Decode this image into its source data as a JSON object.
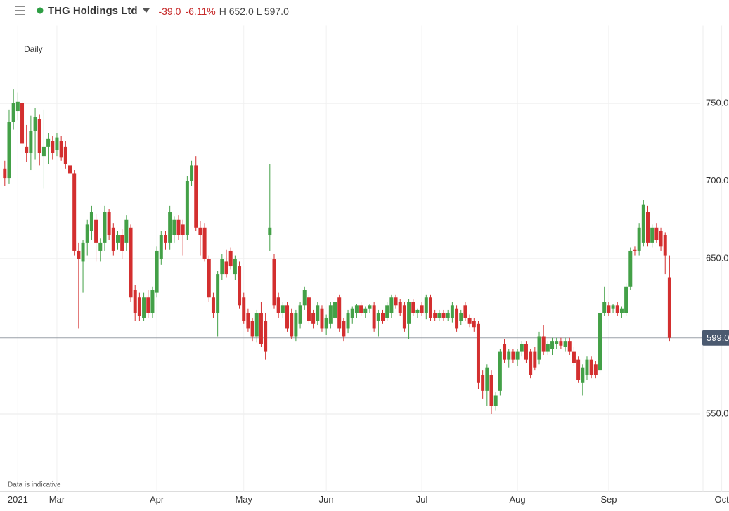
{
  "header": {
    "title": "THG Holdings Ltd",
    "change": "-39.0",
    "change_pct": "-6.11%",
    "stats": "H 652.0 L 597.0"
  },
  "chart_data": {
    "type": "candlestick",
    "interval": "Daily",
    "note": "Data is indicative",
    "up_color": "#43a047",
    "down_color": "#d32f2f",
    "xlim": [
      -1.1,
      160.7
    ],
    "xticks": [
      {
        "value": 3,
        "label": "2021"
      },
      {
        "value": 12,
        "label": "Mar"
      },
      {
        "value": 35,
        "label": "Apr"
      },
      {
        "value": 55,
        "label": "May"
      },
      {
        "value": 74,
        "label": "Jun"
      },
      {
        "value": 96,
        "label": "Jul"
      },
      {
        "value": 118,
        "label": "Aug"
      },
      {
        "value": 139,
        "label": "Sep"
      },
      {
        "value": 165,
        "label": "Oct"
      }
    ],
    "ylim": [
      500,
      800
    ],
    "yticks": [
      {
        "value": 550,
        "label": "550.0"
      },
      {
        "value": 650,
        "label": "650.0"
      },
      {
        "value": 700,
        "label": "700.0"
      },
      {
        "value": 750,
        "label": "750.0"
      }
    ],
    "grid": true,
    "price_line": {
      "value": 599,
      "label": "599.0"
    },
    "ohlc": [
      [
        708,
        713,
        697,
        702
      ],
      [
        702,
        746,
        698,
        738
      ],
      [
        738,
        759,
        733,
        750
      ],
      [
        745,
        757,
        739,
        751
      ],
      [
        750,
        752,
        718,
        724
      ],
      [
        722,
        736,
        712,
        718
      ],
      [
        718,
        742,
        707,
        732
      ],
      [
        732,
        747,
        714,
        741
      ],
      [
        740,
        743,
        710,
        718
      ],
      [
        716,
        746,
        695,
        722
      ],
      [
        722,
        731,
        711,
        727
      ],
      [
        726,
        729,
        714,
        718
      ],
      [
        720,
        731,
        716,
        728
      ],
      [
        726,
        729,
        713,
        715
      ],
      [
        722,
        726,
        708,
        711
      ],
      [
        710,
        713,
        703,
        705
      ],
      [
        705,
        707,
        652,
        655
      ],
      [
        655,
        660,
        605,
        650
      ],
      [
        648,
        662,
        628,
        660
      ],
      [
        660,
        675,
        652,
        672
      ],
      [
        668,
        684,
        662,
        680
      ],
      [
        675,
        679,
        648,
        660
      ],
      [
        655,
        663,
        648,
        660
      ],
      [
        660,
        684,
        655,
        680
      ],
      [
        680,
        682,
        662,
        665
      ],
      [
        670,
        673,
        652,
        655
      ],
      [
        660,
        668,
        656,
        665
      ],
      [
        665,
        669,
        650,
        655
      ],
      [
        660,
        678,
        655,
        675
      ],
      [
        670,
        672,
        622,
        625
      ],
      [
        630,
        633,
        610,
        615
      ],
      [
        625,
        628,
        610,
        613
      ],
      [
        612,
        628,
        610,
        625
      ],
      [
        625,
        630,
        612,
        615
      ],
      [
        615,
        632,
        612,
        630
      ],
      [
        628,
        658,
        625,
        655
      ],
      [
        650,
        668,
        646,
        665
      ],
      [
        665,
        668,
        656,
        660
      ],
      [
        660,
        684,
        656,
        680
      ],
      [
        665,
        677,
        660,
        675
      ],
      [
        675,
        678,
        662,
        665
      ],
      [
        672,
        675,
        652,
        665
      ],
      [
        665,
        703,
        662,
        700
      ],
      [
        700,
        713,
        697,
        710
      ],
      [
        710,
        716,
        668,
        670
      ],
      [
        670,
        674,
        652,
        665
      ],
      [
        670,
        673,
        648,
        650
      ],
      [
        650,
        652,
        622,
        625
      ],
      [
        625,
        628,
        612,
        615
      ],
      [
        615,
        642,
        600,
        640
      ],
      [
        640,
        653,
        636,
        650
      ],
      [
        648,
        656,
        638,
        640
      ],
      [
        655,
        657,
        643,
        645
      ],
      [
        640,
        652,
        636,
        650
      ],
      [
        645,
        648,
        618,
        620
      ],
      [
        625,
        628,
        608,
        610
      ],
      [
        615,
        618,
        603,
        605
      ],
      [
        610,
        612,
        597,
        600
      ],
      [
        600,
        617,
        596,
        615
      ],
      [
        615,
        622,
        593,
        595
      ],
      [
        610,
        615,
        585,
        590
      ],
      [
        665,
        711,
        655,
        670
      ],
      [
        650,
        653,
        618,
        620
      ],
      [
        625,
        628,
        612,
        615
      ],
      [
        615,
        622,
        612,
        620
      ],
      [
        620,
        622,
        603,
        605
      ],
      [
        615,
        618,
        598,
        600
      ],
      [
        600,
        617,
        597,
        615
      ],
      [
        608,
        622,
        605,
        620
      ],
      [
        620,
        632,
        617,
        630
      ],
      [
        625,
        627,
        608,
        610
      ],
      [
        615,
        617,
        605,
        608
      ],
      [
        610,
        622,
        607,
        620
      ],
      [
        618,
        620,
        603,
        605
      ],
      [
        605,
        614,
        601,
        612
      ],
      [
        608,
        622,
        605,
        620
      ],
      [
        612,
        624,
        610,
        622
      ],
      [
        625,
        627,
        603,
        605
      ],
      [
        610,
        612,
        597,
        600
      ],
      [
        605,
        617,
        602,
        615
      ],
      [
        612,
        619,
        608,
        618
      ],
      [
        615,
        621,
        612,
        620
      ],
      [
        620,
        622,
        613,
        615
      ],
      [
        615,
        619,
        612,
        618
      ],
      [
        618,
        621,
        615,
        620
      ],
      [
        620,
        622,
        603,
        605
      ],
      [
        610,
        617,
        600,
        615
      ],
      [
        615,
        617,
        608,
        610
      ],
      [
        612,
        622,
        610,
        620
      ],
      [
        615,
        627,
        612,
        625
      ],
      [
        625,
        627,
        618,
        620
      ],
      [
        622,
        624,
        613,
        615
      ],
      [
        620,
        622,
        603,
        605
      ],
      [
        608,
        624,
        598,
        622
      ],
      [
        622,
        624,
        613,
        615
      ],
      [
        615,
        618,
        612,
        617
      ],
      [
        620,
        622,
        613,
        615
      ],
      [
        615,
        627,
        611,
        625
      ],
      [
        625,
        627,
        610,
        612
      ],
      [
        615,
        617,
        610,
        612
      ],
      [
        612,
        617,
        610,
        615
      ],
      [
        615,
        617,
        610,
        612
      ],
      [
        612,
        617,
        610,
        615
      ],
      [
        612,
        622,
        609,
        620
      ],
      [
        618,
        620,
        603,
        605
      ],
      [
        610,
        617,
        607,
        615
      ],
      [
        620,
        622,
        610,
        612
      ],
      [
        612,
        614,
        606,
        608
      ],
      [
        610,
        612,
        603,
        606
      ],
      [
        608,
        610,
        566,
        570
      ],
      [
        575,
        578,
        560,
        565
      ],
      [
        565,
        582,
        555,
        580
      ],
      [
        575,
        578,
        550,
        555
      ],
      [
        555,
        564,
        552,
        562
      ],
      [
        565,
        592,
        562,
        590
      ],
      [
        595,
        598,
        583,
        585
      ],
      [
        585,
        592,
        580,
        590
      ],
      [
        590,
        592,
        583,
        585
      ],
      [
        585,
        592,
        581,
        590
      ],
      [
        590,
        597,
        587,
        595
      ],
      [
        595,
        597,
        583,
        585
      ],
      [
        590,
        592,
        573,
        575
      ],
      [
        590,
        593,
        578,
        580
      ],
      [
        585,
        603,
        582,
        600
      ],
      [
        600,
        607,
        588,
        590
      ],
      [
        590,
        597,
        588,
        595
      ],
      [
        592,
        599,
        588,
        597
      ],
      [
        595,
        599,
        592,
        597
      ],
      [
        597,
        599,
        592,
        594
      ],
      [
        593,
        599,
        590,
        597
      ],
      [
        597,
        599,
        588,
        590
      ],
      [
        590,
        593,
        581,
        583
      ],
      [
        585,
        587,
        570,
        572
      ],
      [
        570,
        582,
        562,
        580
      ],
      [
        575,
        587,
        572,
        585
      ],
      [
        585,
        587,
        573,
        575
      ],
      [
        582,
        584,
        573,
        575
      ],
      [
        578,
        617,
        576,
        615
      ],
      [
        615,
        632,
        613,
        622
      ],
      [
        620,
        622,
        613,
        615
      ],
      [
        618,
        621,
        615,
        620
      ],
      [
        620,
        622,
        613,
        615
      ],
      [
        615,
        619,
        612,
        618
      ],
      [
        615,
        634,
        613,
        632
      ],
      [
        632,
        657,
        630,
        655
      ],
      [
        656,
        658,
        652,
        655
      ],
      [
        655,
        673,
        652,
        670
      ],
      [
        660,
        688,
        658,
        685
      ],
      [
        680,
        684,
        658,
        660
      ],
      [
        660,
        672,
        657,
        670
      ],
      [
        670,
        673,
        660,
        662
      ],
      [
        668,
        670,
        655,
        658
      ],
      [
        665,
        667,
        640,
        652
      ],
      [
        638,
        652,
        597,
        599
      ]
    ]
  }
}
